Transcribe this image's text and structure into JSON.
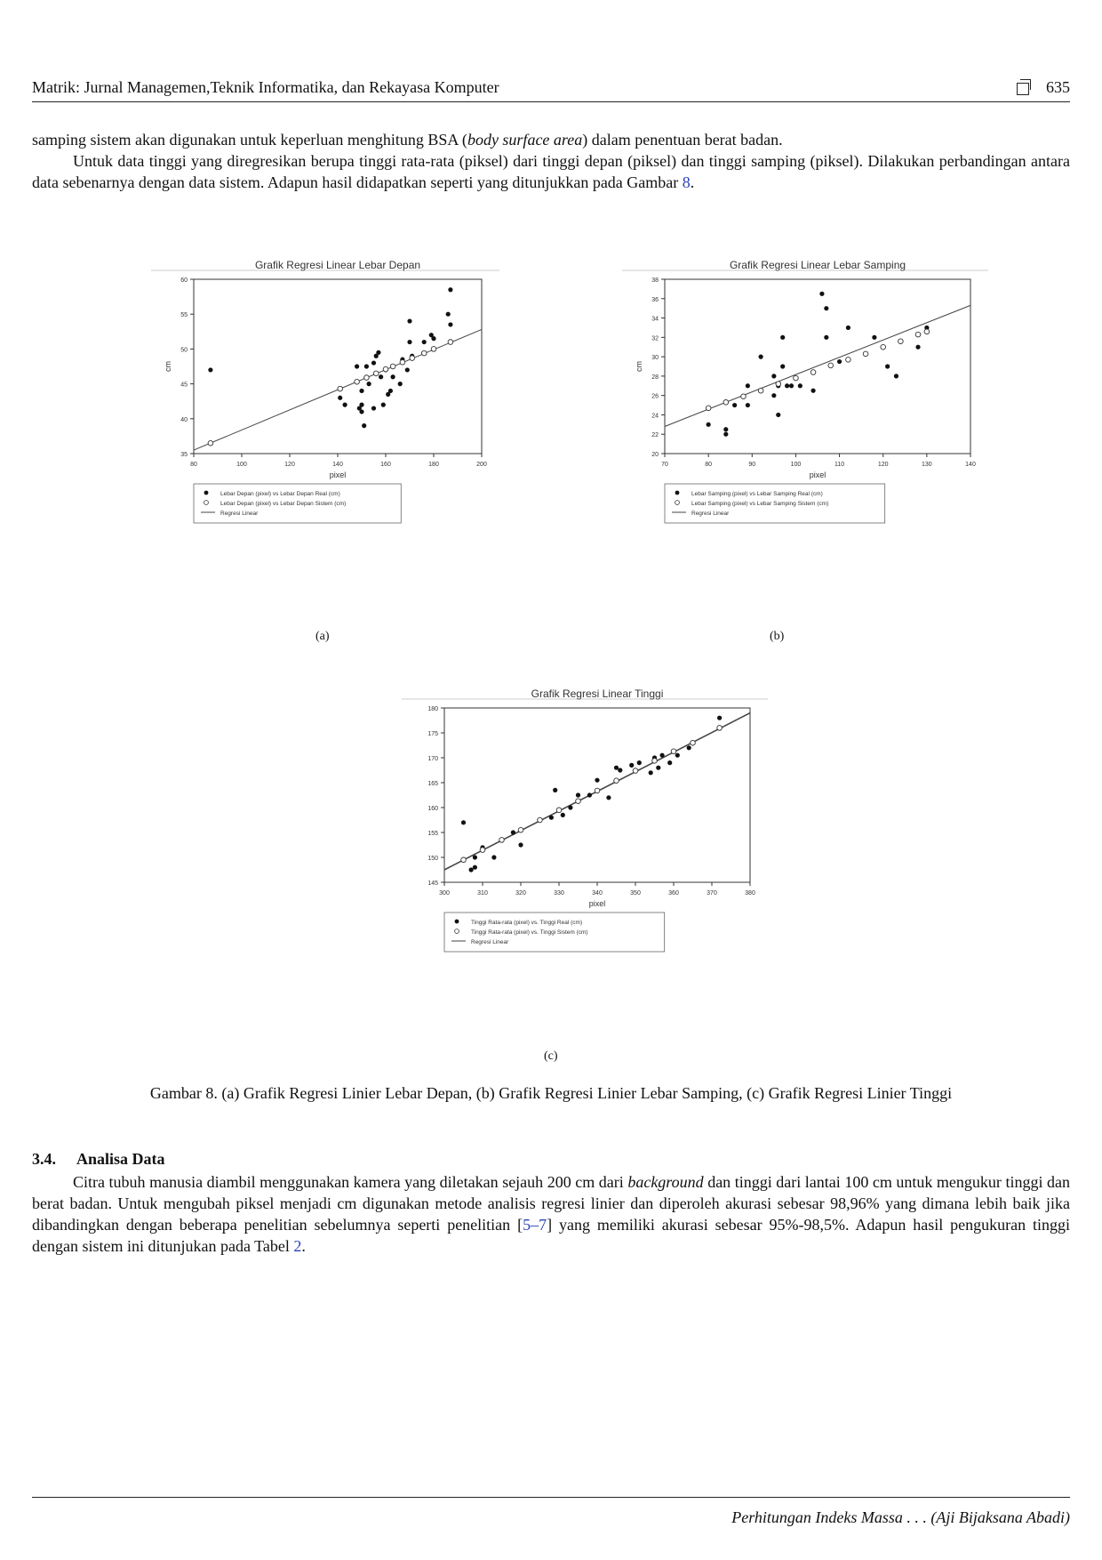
{
  "header": {
    "journal": "Matrik: Jurnal Managemen,Teknik Informatika, dan Rekayasa Komputer",
    "page": "635"
  },
  "intro": {
    "line1_a": "samping sistem akan digunakan untuk keperluan menghitung BSA (",
    "line1_em": "body surface area",
    "line1_b": ") dalam penentuan berat badan.",
    "p2": "Untuk data tinggi yang diregresikan berupa tinggi rata-rata (piksel) dari tinggi depan (piksel) dan tinggi samping (piksel). Dilakukan perbandingan antara data sebenarnya dengan data sistem. Adapun hasil didapatkan seperti yang ditunjukkan pada Gambar ",
    "p2_ref": "8",
    "p2_end": "."
  },
  "figure": {
    "sub_a": "(a)",
    "sub_b": "(b)",
    "sub_c": "(c)",
    "caption": "Gambar 8. (a) Grafik Regresi Linier Lebar Depan, (b) Grafik Regresi Linier Lebar Samping, (c) Grafik Regresi Linier Tinggi"
  },
  "section": {
    "number": "3.4.",
    "title": "Analisa Data",
    "p_a": "Citra tubuh manusia diambil menggunakan kamera yang diletakan sejauh 200 cm dari ",
    "p_em": "background",
    "p_b": " dan tinggi dari lantai 100 cm untuk mengukur tinggi dan berat badan. Untuk mengubah piksel menjadi cm digunakan metode analisis regresi linier dan diperoleh akurasi sebesar 98,96% yang dimana lebih baik jika dibandingkan dengan beberapa penelitian sebelumnya seperti penelitian [",
    "p_ref": "5–7",
    "p_c": "] yang memiliki akurasi sebesar 95%-98,5%. Adapun hasil pengukuran tinggi dengan sistem ini ditunjukan pada Tabel ",
    "p_ref2": "2",
    "p_d": "."
  },
  "footer": {
    "text": "Perhitungan Indeks Massa . . . (Aji Bijaksana Abadi)"
  },
  "chart_data": [
    {
      "type": "scatter",
      "title": "Grafik Regresi Linear Lebar Depan",
      "xlabel": "pixel",
      "ylabel": "cm",
      "xlim": [
        80,
        200
      ],
      "ylim": [
        35,
        60
      ],
      "xticks": [
        80,
        100,
        120,
        140,
        160,
        180,
        200
      ],
      "yticks": [
        35,
        40,
        45,
        50,
        55,
        60
      ],
      "legend_position": "bottom",
      "series": [
        {
          "name": "Lebar Depan (pixel) vs Lebar Depan Real (cm)",
          "marker": "filled",
          "points": [
            [
              87,
              47
            ],
            [
              141,
              43
            ],
            [
              143,
              42
            ],
            [
              148,
              47.5
            ],
            [
              149,
              41.5
            ],
            [
              150,
              41
            ],
            [
              150,
              42
            ],
            [
              150,
              44
            ],
            [
              151,
              39
            ],
            [
              152,
              47.5
            ],
            [
              153,
              45
            ],
            [
              155,
              41.5
            ],
            [
              155,
              48
            ],
            [
              156,
              49
            ],
            [
              157,
              49.5
            ],
            [
              158,
              46
            ],
            [
              159,
              42
            ],
            [
              160,
              47
            ],
            [
              161,
              43.5
            ],
            [
              162,
              44
            ],
            [
              163,
              46
            ],
            [
              166,
              45
            ],
            [
              167,
              48.5
            ],
            [
              169,
              47
            ],
            [
              170,
              54
            ],
            [
              170,
              51
            ],
            [
              171,
              49
            ],
            [
              176,
              51
            ],
            [
              179,
              52
            ],
            [
              180,
              51.5
            ],
            [
              186,
              55
            ],
            [
              187,
              53.5
            ],
            [
              187,
              58.5
            ]
          ]
        },
        {
          "name": "Lebar Depan (pixel) vs Lebar Depan Sistem (cm)",
          "marker": "open",
          "points": [
            [
              87,
              36.5
            ],
            [
              141,
              44.3
            ],
            [
              148,
              45.3
            ],
            [
              152,
              45.9
            ],
            [
              156,
              46.5
            ],
            [
              160,
              47.1
            ],
            [
              163,
              47.5
            ],
            [
              167,
              48.1
            ],
            [
              171,
              48.7
            ],
            [
              176,
              49.4
            ],
            [
              180,
              50
            ],
            [
              187,
              51
            ]
          ]
        },
        {
          "name": "Regresi Linear",
          "marker": "line",
          "points": [
            [
              80,
              35.5
            ],
            [
              200,
              52.8
            ]
          ]
        }
      ]
    },
    {
      "type": "scatter",
      "title": "Grafik Regresi Linear Lebar Samping",
      "xlabel": "pixel",
      "ylabel": "cm",
      "xlim": [
        70,
        140
      ],
      "ylim": [
        20,
        38
      ],
      "xticks": [
        70,
        80,
        90,
        100,
        110,
        120,
        130,
        140
      ],
      "yticks": [
        20,
        22,
        24,
        26,
        28,
        30,
        32,
        34,
        36,
        38
      ],
      "legend_position": "bottom",
      "series": [
        {
          "name": "Lebar Samping (pixel) vs Lebar Samping Real (cm)",
          "marker": "filled",
          "points": [
            [
              80,
              23
            ],
            [
              84,
              22.5
            ],
            [
              84,
              22
            ],
            [
              86,
              25
            ],
            [
              89,
              25
            ],
            [
              89,
              27
            ],
            [
              92,
              30
            ],
            [
              95,
              26
            ],
            [
              95,
              28
            ],
            [
              96,
              24
            ],
            [
              96,
              27
            ],
            [
              97,
              29
            ],
            [
              97,
              32
            ],
            [
              98,
              27
            ],
            [
              99,
              27
            ],
            [
              101,
              27
            ],
            [
              104,
              26.5
            ],
            [
              106,
              36.5
            ],
            [
              107,
              35
            ],
            [
              107,
              32
            ],
            [
              110,
              29.5
            ],
            [
              112,
              33
            ],
            [
              118,
              32
            ],
            [
              121,
              29
            ],
            [
              123,
              28
            ],
            [
              128,
              31
            ],
            [
              130,
              33
            ]
          ]
        },
        {
          "name": "Lebar Samping (pixel) vs Lebar Samping Sistem (cm)",
          "marker": "open",
          "points": [
            [
              80,
              24.7
            ],
            [
              84,
              25.3
            ],
            [
              88,
              25.9
            ],
            [
              92,
              26.5
            ],
            [
              96,
              27.2
            ],
            [
              100,
              27.8
            ],
            [
              104,
              28.4
            ],
            [
              108,
              29.1
            ],
            [
              112,
              29.7
            ],
            [
              116,
              30.3
            ],
            [
              120,
              31
            ],
            [
              124,
              31.6
            ],
            [
              128,
              32.3
            ],
            [
              130,
              32.6
            ]
          ]
        },
        {
          "name": "Regresi Linear",
          "marker": "line",
          "points": [
            [
              70,
              22.8
            ],
            [
              140,
              35.3
            ]
          ]
        }
      ]
    },
    {
      "type": "scatter",
      "title": "Grafik Regresi Linear Tinggi",
      "xlabel": "pixel",
      "ylabel": "",
      "xlim": [
        300,
        380
      ],
      "ylim": [
        145,
        180
      ],
      "xticks": [
        300,
        310,
        320,
        330,
        340,
        350,
        360,
        370,
        380
      ],
      "yticks": [
        145,
        150,
        155,
        160,
        165,
        170,
        175,
        180
      ],
      "legend_position": "bottom",
      "series": [
        {
          "name": "Tinggi Rata-rata (pixel) vs. Tinggi Real (cm)",
          "marker": "filled",
          "points": [
            [
              305,
              157
            ],
            [
              307,
              147.5
            ],
            [
              308,
              148
            ],
            [
              308,
              150
            ],
            [
              310,
              152
            ],
            [
              313,
              150
            ],
            [
              318,
              155
            ],
            [
              320,
              152.5
            ],
            [
              328,
              158
            ],
            [
              329,
              163.5
            ],
            [
              331,
              158.5
            ],
            [
              333,
              160
            ],
            [
              335,
              162.5
            ],
            [
              338,
              162.5
            ],
            [
              340,
              165.5
            ],
            [
              343,
              162
            ],
            [
              345,
              168
            ],
            [
              346,
              167.5
            ],
            [
              349,
              168.5
            ],
            [
              351,
              169
            ],
            [
              354,
              167
            ],
            [
              355,
              170
            ],
            [
              356,
              168
            ],
            [
              357,
              170.5
            ],
            [
              359,
              169
            ],
            [
              361,
              170.5
            ],
            [
              364,
              172
            ],
            [
              372,
              178
            ]
          ]
        },
        {
          "name": "Tinggi Rata-rata (pixel) vs. Tinggi Sistem (cm)",
          "marker": "open",
          "points": [
            [
              305,
              149.5
            ],
            [
              310,
              151.5
            ],
            [
              315,
              153.5
            ],
            [
              320,
              155.5
            ],
            [
              325,
              157.5
            ],
            [
              330,
              159.5
            ],
            [
              335,
              161.3
            ],
            [
              340,
              163.4
            ],
            [
              345,
              165.4
            ],
            [
              350,
              167.4
            ],
            [
              355,
              169.4
            ],
            [
              360,
              171.3
            ],
            [
              365,
              173
            ],
            [
              372,
              176
            ]
          ]
        },
        {
          "name": "Regresi Linear",
          "marker": "line",
          "points": [
            [
              300,
              147.5
            ],
            [
              380,
              179
            ]
          ]
        }
      ]
    }
  ]
}
